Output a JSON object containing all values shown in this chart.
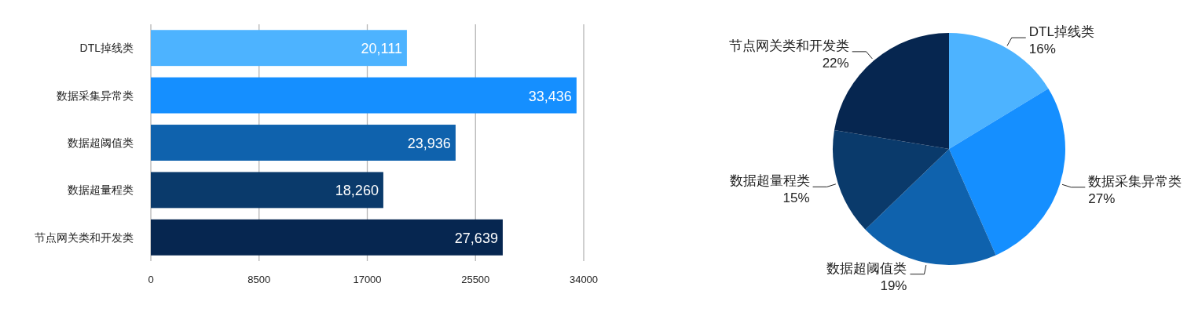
{
  "chart_data": [
    {
      "type": "bar",
      "orientation": "horizontal",
      "categories": [
        "DTL掉线类",
        "数据采集异常类",
        "数据超阈值类",
        "数据超量程类",
        "节点网关类和开发类"
      ],
      "values": [
        20111,
        33436,
        23936,
        18260,
        27639
      ],
      "colors": [
        "#4db3ff",
        "#158fff",
        "#0f62ad",
        "#0a3a6b",
        "#062650"
      ],
      "value_labels": [
        "20,111",
        "33,436",
        "23,936",
        "18,260",
        "27,639"
      ],
      "xlim": [
        0,
        34000
      ],
      "xticks": [
        0,
        8500,
        17000,
        25500,
        34000
      ],
      "grid": "x"
    },
    {
      "type": "pie",
      "categories": [
        "DTL掉线类",
        "数据采集异常类",
        "数据超阈值类",
        "数据超量程类",
        "节点网关类和开发类"
      ],
      "values": [
        16.3,
        27.1,
        19.4,
        14.8,
        22.4
      ],
      "colors": [
        "#4db3ff",
        "#158fff",
        "#0f62ad",
        "#0a3a6b",
        "#062650"
      ],
      "value_labels": [
        "16%",
        "27%",
        "19%",
        "15%",
        "22%"
      ]
    }
  ]
}
